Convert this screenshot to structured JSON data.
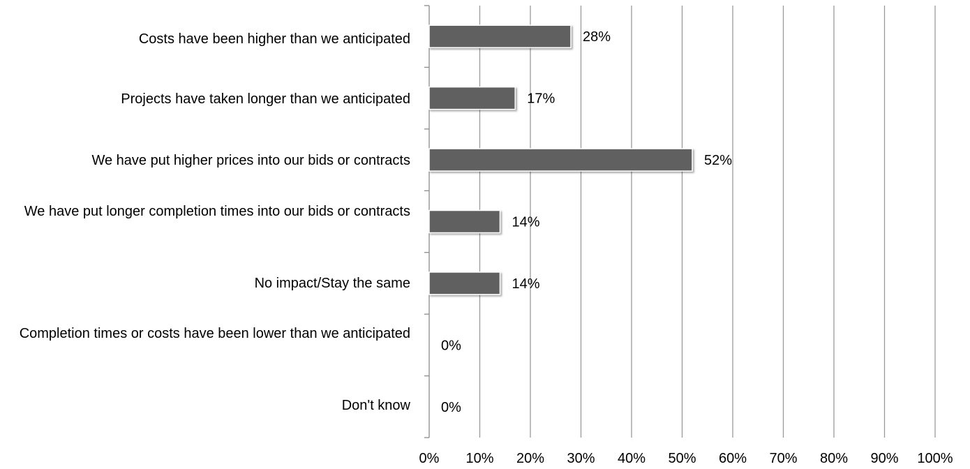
{
  "chart_data": {
    "type": "bar",
    "orientation": "horizontal",
    "categories": [
      "Costs have been higher than we anticipated",
      "Projects have taken longer than we anticipated",
      "We have put higher prices into our bids or contracts",
      "We have put longer completion times into our bids or contracts",
      "No impact/Stay the same",
      "Completion times or costs have been lower than we anticipated",
      "Don't know"
    ],
    "values": [
      28,
      17,
      52,
      14,
      14,
      0,
      0
    ],
    "value_labels": [
      "28%",
      "17%",
      "52%",
      "14%",
      "14%",
      "0%",
      "0%"
    ],
    "x_ticks": [
      "0%",
      "10%",
      "20%",
      "30%",
      "40%",
      "50%",
      "60%",
      "70%",
      "80%",
      "90%",
      "100%"
    ],
    "xlim": [
      0,
      100
    ],
    "grid": true,
    "legend": "none",
    "bar_color": "#606060",
    "grid_color": "#9a9a9a"
  }
}
